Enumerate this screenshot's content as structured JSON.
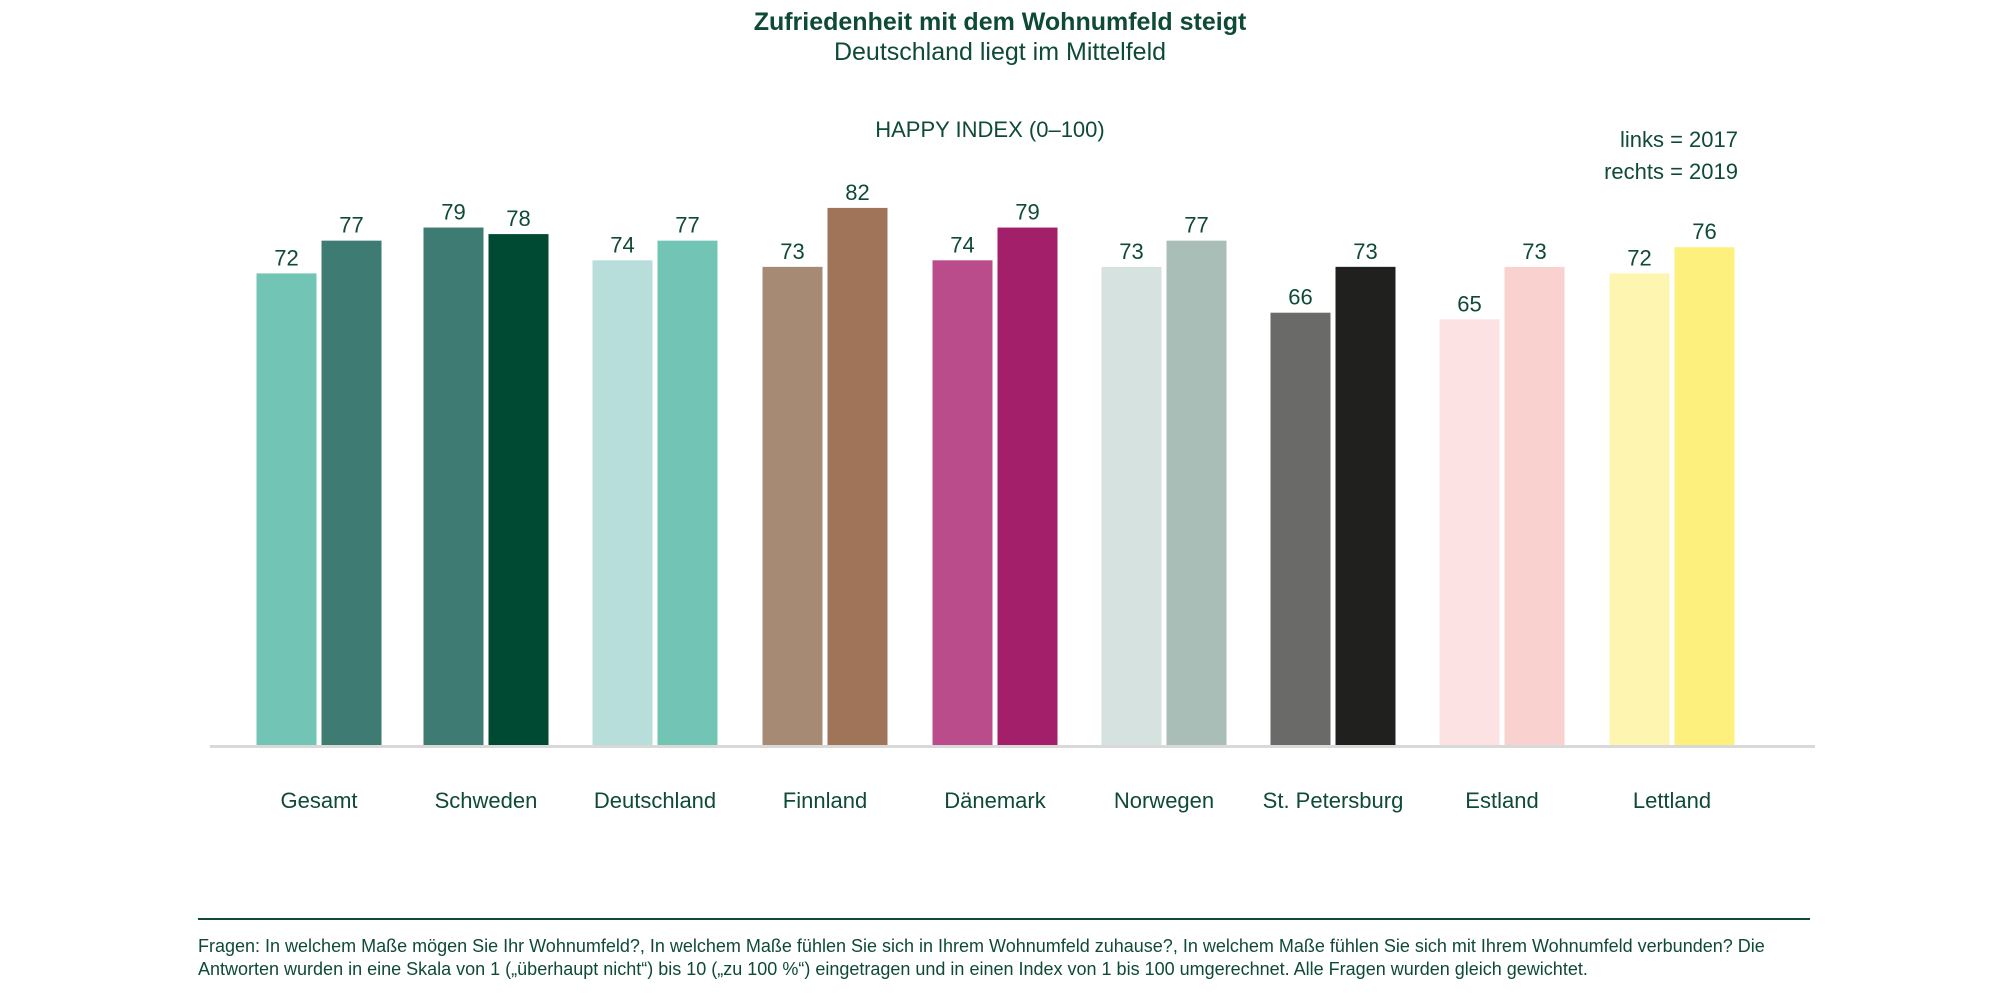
{
  "header": {
    "title": "Zufriedenheit mit dem Wohnumfeld steigt",
    "subtitle": "Deutschland liegt im Mittelfeld"
  },
  "legend": {
    "left": "links = 2017",
    "right": "rechts = 2019"
  },
  "footnote": "Fragen: In welchem Maße mögen Sie Ihr Wohnumfeld?, In welchem Maße fühlen Sie sich in Ihrem Wohnumfeld zuhause?, In welchem Maße fühlen Sie sich mit Ihrem Wohnumfeld verbunden? Die Antworten wurden in eine Skala von 1 („überhaupt nicht“) bis 10 („zu 100 %“) eingetragen und in einen Index von 1 bis 100 umgerechnet. Alle Fragen wurden gleich gewichtet.",
  "chart_data": {
    "type": "bar",
    "title": "HAPPY INDEX (0–100)",
    "categories": [
      "Gesamt",
      "Schweden",
      "Deutschland",
      "Finnland",
      "Dänemark",
      "Norwegen",
      "St. Petersburg",
      "Estland",
      "Lettland"
    ],
    "series": [
      {
        "name": "links = 2017",
        "values": [
          72,
          79,
          74,
          73,
          74,
          73,
          66,
          65,
          72
        ]
      },
      {
        "name": "rechts = 2019",
        "values": [
          77,
          78,
          77,
          82,
          79,
          77,
          73,
          73,
          76
        ]
      }
    ],
    "ylim": [
      0,
      100
    ],
    "grid": false,
    "legend_position": "top-right",
    "bar_colors": [
      [
        "#72c4b5",
        "#3e7b72"
      ],
      [
        "#3e7b72",
        "#004a33"
      ],
      [
        "#b7deda",
        "#72c4b5"
      ],
      [
        "#a68a73",
        "#a07458"
      ],
      [
        "#bb4c8c",
        "#a41f6a"
      ],
      [
        "#d6e2df",
        "#a9beb7"
      ],
      [
        "#6a6a69",
        "#20201e"
      ],
      [
        "#fde2e3",
        "#f9d1cf"
      ],
      [
        "#fdf5b0",
        "#fef07c"
      ]
    ],
    "label_color": "#0e4a36",
    "baseline_color": "#d9d9d9"
  }
}
